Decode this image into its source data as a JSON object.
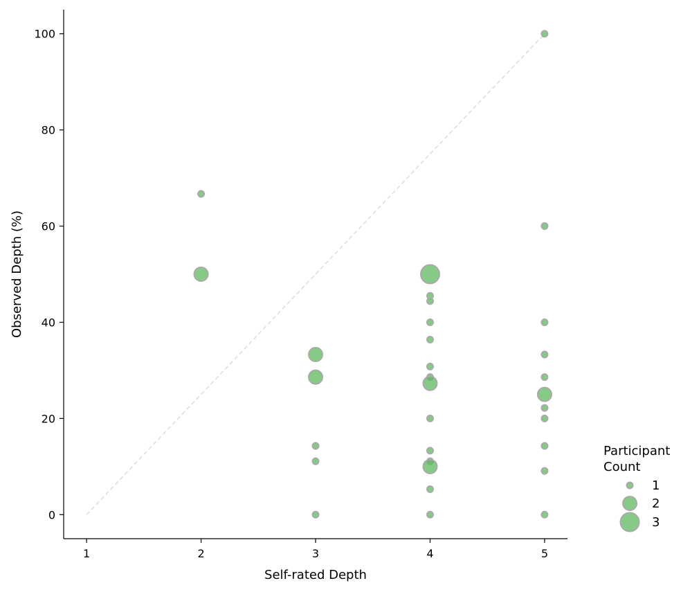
{
  "chart_data": {
    "type": "scatter",
    "title": "",
    "xlabel": "Self-rated Depth",
    "ylabel": "Observed Depth (%)",
    "xlim": [
      0.8,
      5.2
    ],
    "ylim": [
      -5,
      105
    ],
    "xticks": [
      1,
      2,
      3,
      4,
      5
    ],
    "yticks": [
      0,
      20,
      40,
      60,
      80,
      100
    ],
    "grid": false,
    "reference_line": {
      "from": [
        1,
        0
      ],
      "to": [
        5,
        100
      ],
      "style": "dashed",
      "color": "#d9d9d9"
    },
    "point_color": "#5cb85c",
    "point_edge_color": "#aaaaaa",
    "series": [
      {
        "name": "Participants",
        "points": [
          {
            "x": 2,
            "y": 66.7,
            "count": 1
          },
          {
            "x": 2,
            "y": 50.0,
            "count": 2
          },
          {
            "x": 3,
            "y": 33.3,
            "count": 2
          },
          {
            "x": 3,
            "y": 28.6,
            "count": 2
          },
          {
            "x": 3,
            "y": 14.3,
            "count": 1
          },
          {
            "x": 3,
            "y": 11.1,
            "count": 1
          },
          {
            "x": 3,
            "y": 0.0,
            "count": 1
          },
          {
            "x": 4,
            "y": 50.0,
            "count": 3
          },
          {
            "x": 4,
            "y": 45.5,
            "count": 1
          },
          {
            "x": 4,
            "y": 44.4,
            "count": 1
          },
          {
            "x": 4,
            "y": 40.0,
            "count": 1
          },
          {
            "x": 4,
            "y": 36.4,
            "count": 1
          },
          {
            "x": 4,
            "y": 30.8,
            "count": 1
          },
          {
            "x": 4,
            "y": 28.6,
            "count": 1
          },
          {
            "x": 4,
            "y": 27.3,
            "count": 2
          },
          {
            "x": 4,
            "y": 20.0,
            "count": 1
          },
          {
            "x": 4,
            "y": 13.3,
            "count": 1
          },
          {
            "x": 4,
            "y": 11.1,
            "count": 1
          },
          {
            "x": 4,
            "y": 10.0,
            "count": 2
          },
          {
            "x": 4,
            "y": 5.3,
            "count": 1
          },
          {
            "x": 4,
            "y": 0.0,
            "count": 1
          },
          {
            "x": 5,
            "y": 100.0,
            "count": 1
          },
          {
            "x": 5,
            "y": 60.0,
            "count": 1
          },
          {
            "x": 5,
            "y": 40.0,
            "count": 1
          },
          {
            "x": 5,
            "y": 33.3,
            "count": 1
          },
          {
            "x": 5,
            "y": 28.6,
            "count": 1
          },
          {
            "x": 5,
            "y": 25.0,
            "count": 2
          },
          {
            "x": 5,
            "y": 22.2,
            "count": 1
          },
          {
            "x": 5,
            "y": 20.0,
            "count": 1
          },
          {
            "x": 5,
            "y": 14.3,
            "count": 1
          },
          {
            "x": 5,
            "y": 9.1,
            "count": 1
          },
          {
            "x": 5,
            "y": 0.0,
            "count": 1
          }
        ]
      }
    ],
    "legend": {
      "title_line1": "Participant",
      "title_line2": "Count",
      "entries": [
        {
          "label": "1",
          "count": 1
        },
        {
          "label": "2",
          "count": 2
        },
        {
          "label": "3",
          "count": 3
        }
      ],
      "placement": "bottom-right outside"
    }
  }
}
